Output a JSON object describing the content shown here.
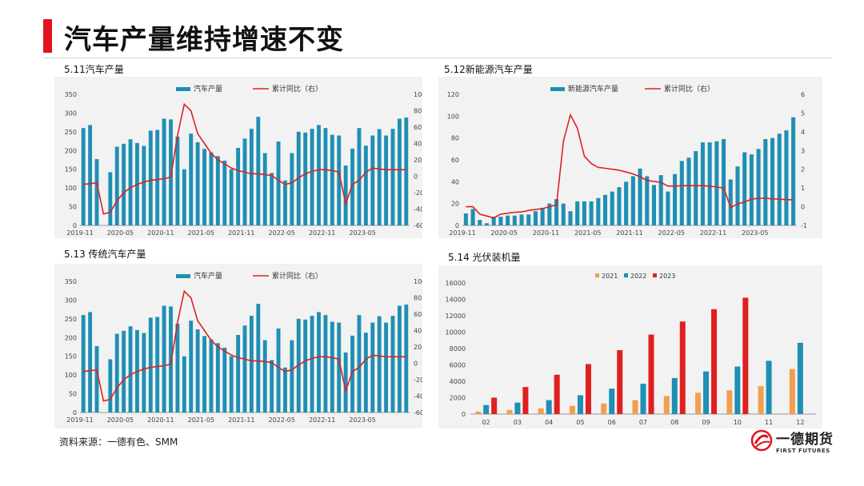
{
  "page": {
    "title": "汽车产量维持增速不变",
    "source": "资料来源：一德有色、SMM",
    "logo_cn": "一德期货",
    "logo_en": "FIRST FUTURES"
  },
  "colors": {
    "bar_blue": "#1f8fb3",
    "line_red": "#e02020",
    "orange": "#f0a050",
    "accent_red": "#e0141f"
  },
  "chart_data": [
    {
      "id": "c511",
      "label": "5.11汽车产量",
      "type": "bar",
      "legend": [
        "汽车产量",
        "累计同比（右）"
      ],
      "left_axis": {
        "ticks": [
          "0",
          "50",
          "100",
          "150",
          "200",
          "250",
          "300",
          "350"
        ],
        "min": 0,
        "max": 350
      },
      "right_axis": {
        "ticks": [
          "-60",
          "-40",
          "-20",
          "0",
          "20",
          "40",
          "60",
          "80",
          "100"
        ],
        "min": -60,
        "max": 100
      },
      "x_ticks": [
        "2019-11",
        "2020-05",
        "2020-11",
        "2021-05",
        "2021-11",
        "2022-05",
        "2022-11",
        "2023-05"
      ],
      "tick_step": 6,
      "bars": [
        260,
        268,
        177,
        0,
        142,
        210,
        218,
        230,
        220,
        212,
        253,
        255,
        285,
        283,
        237,
        150,
        245,
        222,
        204,
        195,
        185,
        173,
        150,
        207,
        232,
        258,
        290,
        193,
        140,
        224,
        120,
        193,
        250,
        248,
        258,
        268,
        260,
        242,
        240,
        160,
        205,
        260,
        213,
        240,
        257,
        240,
        258,
        285,
        288
      ],
      "line": [
        -10,
        -9,
        -8,
        -46,
        -44,
        -30,
        -20,
        -14,
        -10,
        -7,
        -5,
        -4,
        -3,
        -1,
        50,
        88,
        80,
        52,
        40,
        28,
        20,
        15,
        10,
        7,
        5,
        3,
        3,
        2,
        1,
        -5,
        -10,
        -8,
        -2,
        3,
        6,
        8,
        8,
        7,
        5,
        -34,
        -10,
        -5,
        5,
        10,
        9,
        8,
        8,
        8,
        8
      ]
    },
    {
      "id": "c512",
      "label": "5.12新能源汽车产量",
      "type": "bar",
      "legend": [
        "新能源汽车产量",
        "累计同比（右）"
      ],
      "left_axis": {
        "ticks": [
          "0",
          "20",
          "40",
          "60",
          "80",
          "100",
          "120"
        ],
        "min": 0,
        "max": 120
      },
      "right_axis": {
        "ticks": [
          "-1",
          "0",
          "1",
          "2",
          "3",
          "4",
          "5",
          "6"
        ],
        "min": -1,
        "max": 6
      },
      "x_ticks": [
        "2019-11",
        "2020-05",
        "2020-11",
        "2021-05",
        "2021-11",
        "2022-05",
        "2022-11",
        "2023-05"
      ],
      "tick_step": 6,
      "bars": [
        11,
        15,
        5,
        2,
        8,
        8,
        9,
        9,
        10,
        10,
        13,
        16,
        20,
        24,
        20,
        13,
        22,
        22,
        22,
        25,
        28,
        31,
        35,
        40,
        45,
        52,
        45,
        37,
        46,
        31,
        47,
        59,
        62,
        68,
        76,
        76,
        77,
        79,
        42,
        54,
        67,
        65,
        70,
        79,
        80,
        84,
        87,
        99
      ],
      "line": [
        0,
        0,
        -0.4,
        -0.5,
        -0.6,
        -0.4,
        -0.35,
        -0.3,
        -0.28,
        -0.2,
        -0.15,
        -0.1,
        0,
        0.1,
        3.5,
        4.9,
        4.2,
        2.7,
        2.3,
        2.1,
        2.05,
        2.0,
        1.95,
        1.85,
        1.75,
        1.6,
        1.4,
        1.35,
        1.3,
        1.1,
        1.1,
        1.12,
        1.12,
        1.12,
        1.12,
        1.1,
        1.05,
        1.0,
        -0.05,
        0.15,
        0.25,
        0.4,
        0.45,
        0.45,
        0.42,
        0.4,
        0.38,
        0.36
      ]
    },
    {
      "id": "c513",
      "label": "5.13 传统汽车产量",
      "type": "bar",
      "legend": [
        "汽车产量",
        "累计同比（右）"
      ],
      "left_axis": {
        "ticks": [
          "0",
          "50",
          "100",
          "150",
          "200",
          "250",
          "300",
          "350"
        ],
        "min": 0,
        "max": 350
      },
      "right_axis": {
        "ticks": [
          "-60",
          "-40",
          "-20",
          "0",
          "20",
          "40",
          "60",
          "80",
          "100"
        ],
        "min": -60,
        "max": 100
      },
      "x_ticks": [
        "2019-11",
        "2020-05",
        "2020-11",
        "2021-05",
        "2021-11",
        "2022-05",
        "2022-11",
        "2023-05"
      ],
      "tick_step": 6,
      "bars": [
        260,
        268,
        177,
        0,
        142,
        210,
        218,
        230,
        220,
        212,
        253,
        255,
        285,
        283,
        237,
        150,
        245,
        222,
        204,
        195,
        185,
        173,
        150,
        207,
        232,
        258,
        290,
        193,
        140,
        224,
        120,
        193,
        250,
        248,
        258,
        268,
        260,
        242,
        240,
        160,
        205,
        260,
        213,
        240,
        257,
        240,
        258,
        285,
        288
      ],
      "line": [
        -10,
        -9,
        -8,
        -46,
        -44,
        -30,
        -20,
        -14,
        -10,
        -7,
        -5,
        -4,
        -3,
        -1,
        50,
        88,
        80,
        52,
        40,
        28,
        20,
        15,
        10,
        7,
        5,
        3,
        3,
        2,
        1,
        -5,
        -10,
        -8,
        -2,
        3,
        6,
        8,
        8,
        7,
        5,
        -34,
        -10,
        -5,
        5,
        10,
        9,
        8,
        8,
        8,
        8
      ]
    },
    {
      "id": "c514",
      "label": "5.14 光伏装机量",
      "type": "bar",
      "legend": [
        "2021",
        "2022",
        "2023"
      ],
      "left_axis": {
        "ticks": [
          "0",
          "2000",
          "4000",
          "6000",
          "8000",
          "10000",
          "12000",
          "14000",
          "16000"
        ],
        "min": 0,
        "max": 16000
      },
      "categories": [
        "02",
        "03",
        "04",
        "05",
        "06",
        "07",
        "08",
        "09",
        "10",
        "11",
        "12"
      ],
      "series": [
        {
          "name": "2021",
          "color": "#f0a050",
          "values": [
            300,
            500,
            700,
            1000,
            1300,
            1700,
            2200,
            2600,
            2900,
            3400,
            5500
          ]
        },
        {
          "name": "2022",
          "color": "#1f8fb3",
          "values": [
            1100,
            1400,
            1700,
            2300,
            3100,
            3700,
            4400,
            5200,
            5800,
            6500,
            8700
          ]
        },
        {
          "name": "2023",
          "color": "#e02020",
          "values": [
            2000,
            3300,
            4800,
            6100,
            7800,
            9700,
            11300,
            12800,
            14200,
            null,
            null
          ]
        }
      ]
    }
  ]
}
